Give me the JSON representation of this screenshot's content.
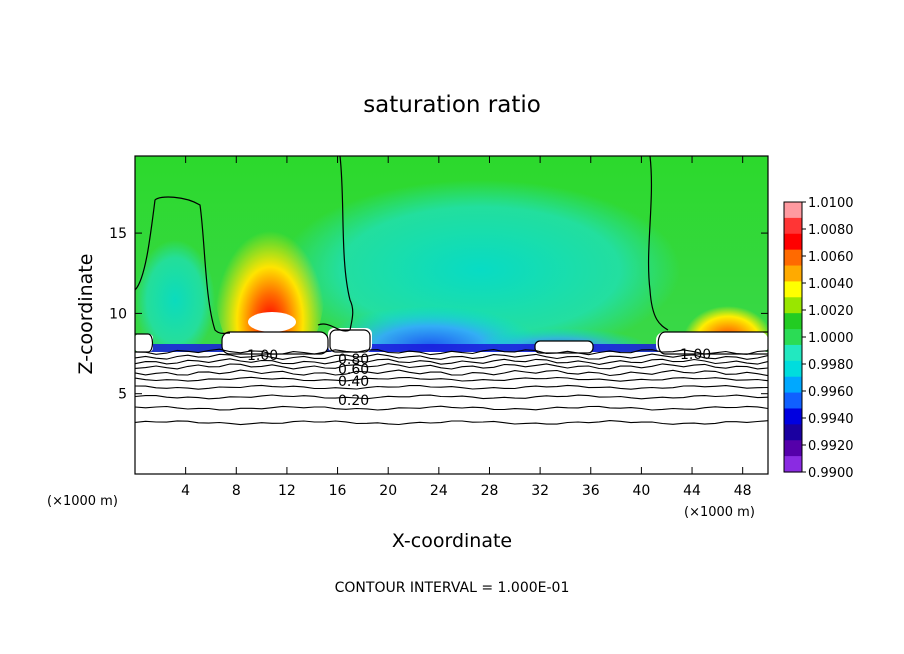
{
  "chart_data": {
    "type": "heatmap",
    "title": "saturation ratio",
    "xlabel": "X-coordinate",
    "ylabel": "Z-coordinate",
    "x_unit_left": "(×1000 m)",
    "x_unit_right": "(×1000 m)",
    "xlim": [
      0,
      50
    ],
    "ylim": [
      0,
      19.8
    ],
    "xticks": [
      4,
      8,
      12,
      16,
      20,
      24,
      28,
      32,
      36,
      40,
      44,
      48
    ],
    "yticks": [
      5,
      10,
      15
    ],
    "colorbar": {
      "ticks": [
        "1.0100",
        "1.0080",
        "1.0060",
        "1.0040",
        "1.0020",
        "1.0000",
        "0.9980",
        "0.9960",
        "0.9940",
        "0.9920",
        "0.9900"
      ],
      "colors": [
        "#ff9aa0",
        "#ff3535",
        "#ff0000",
        "#ff6a00",
        "#ffaa00",
        "#ffff00",
        "#99e600",
        "#22cc22",
        "#2bdc55",
        "#22e8c0",
        "#00dddd",
        "#00a8ff",
        "#1060ff",
        "#0000e0",
        "#1a00a0",
        "#5500aa",
        "#8a2be2"
      ]
    },
    "contour_labels": [
      "1.00",
      "1.00",
      "0.80",
      "0.60",
      "0.40",
      "0.20"
    ],
    "contour_lines_z": [
      3.2,
      4.1,
      4.8,
      5.4,
      5.9,
      6.3,
      6.7,
      7.0,
      7.3,
      7.6
    ],
    "footer": "CONTOUR INTERVAL = 1.000E-01"
  }
}
